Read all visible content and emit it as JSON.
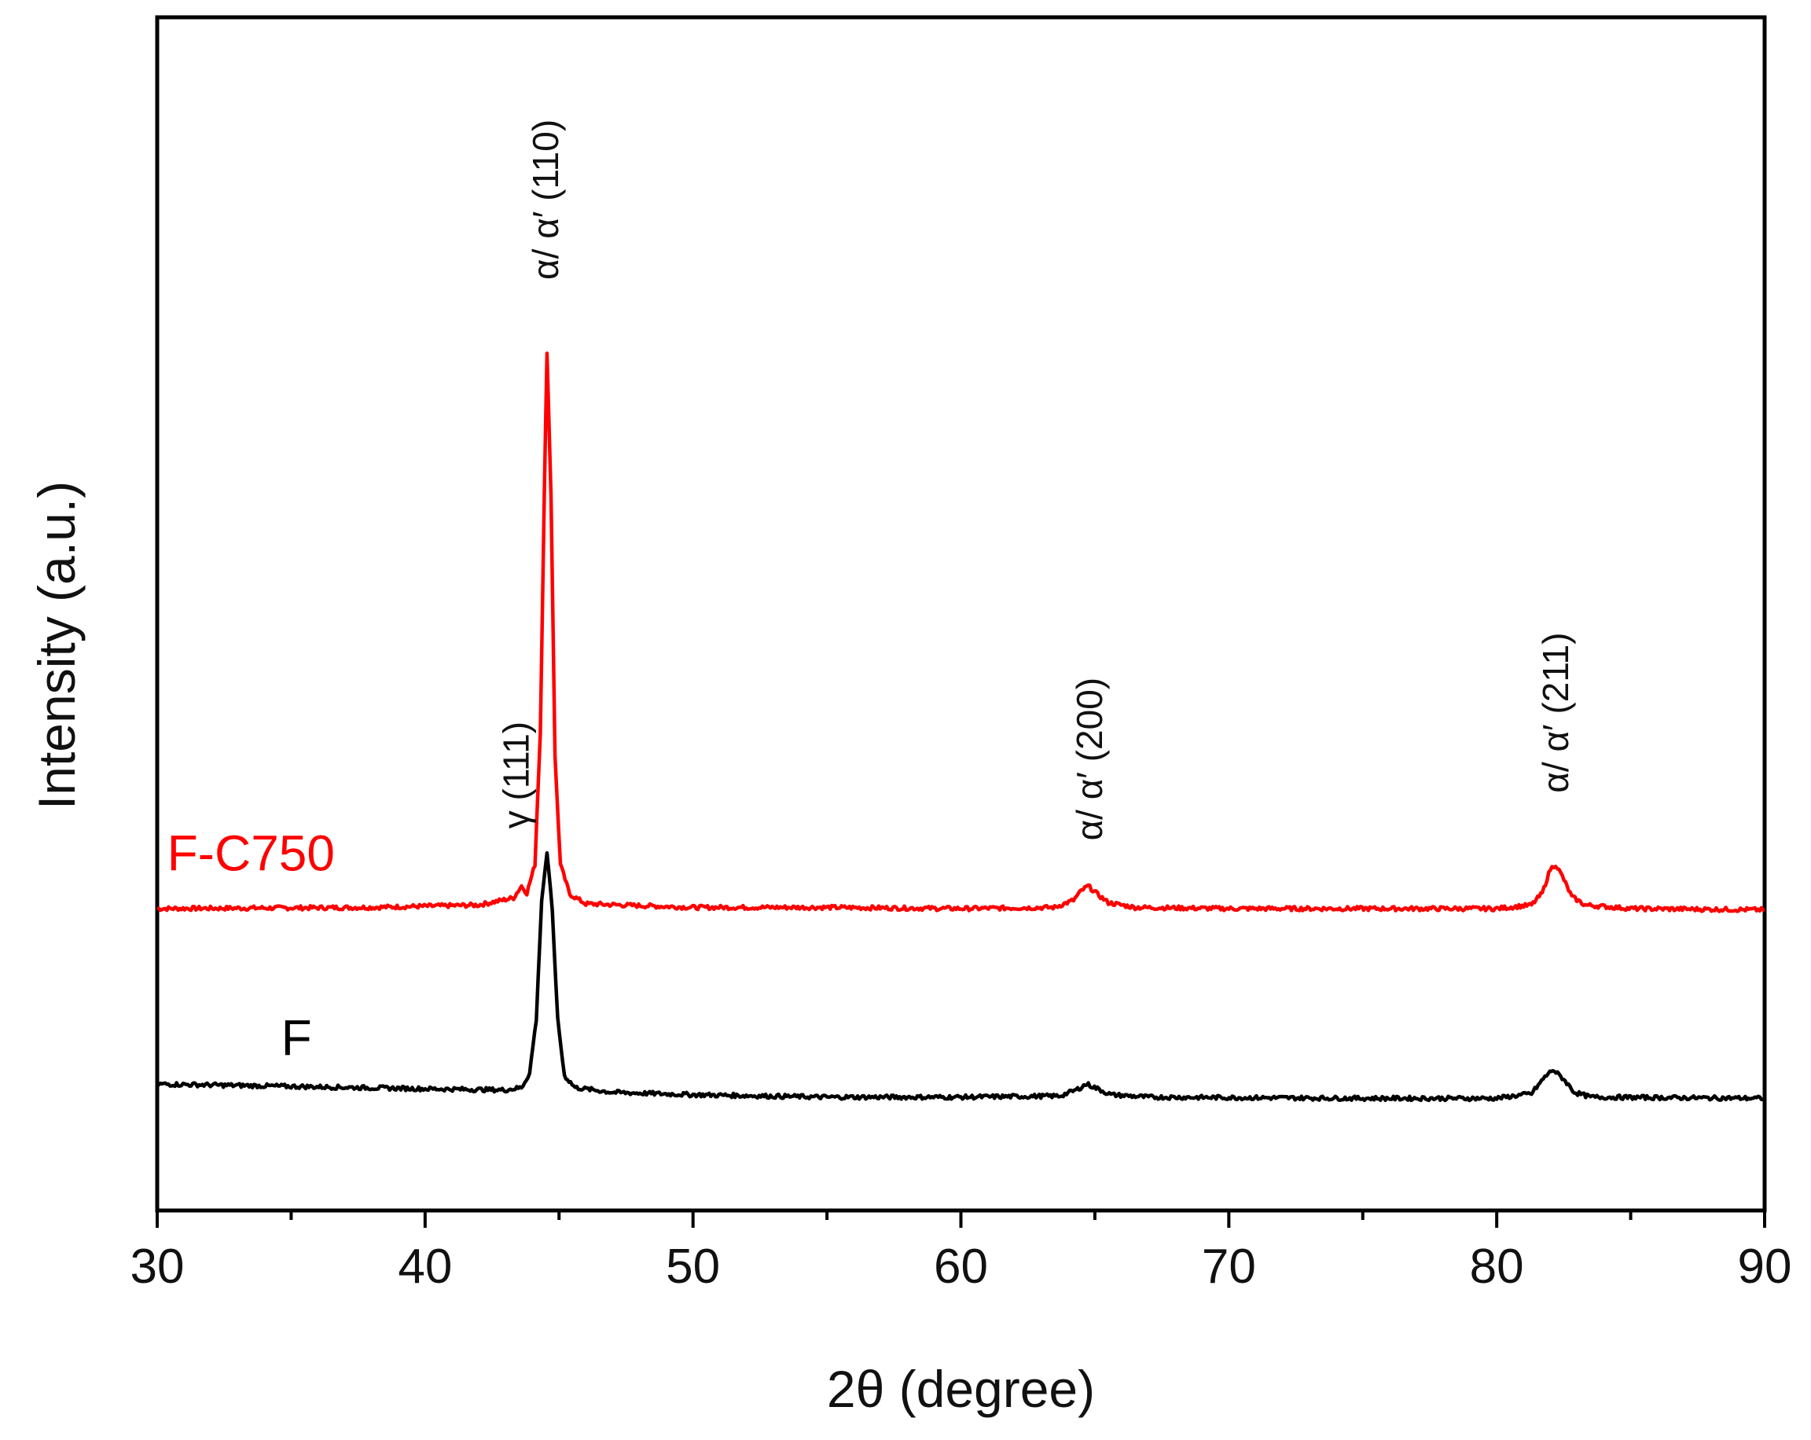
{
  "chart_data": {
    "type": "line",
    "xlabel": "2θ (degree)",
    "ylabel": "Intensity (a.u.)",
    "xlim": [
      30,
      90
    ],
    "ylim": [
      0,
      1
    ],
    "x_ticks": [
      30,
      40,
      50,
      60,
      70,
      80,
      90
    ],
    "y_ticks": [],
    "grid": false,
    "series": [
      {
        "name": "F-C750",
        "color": "#ff0000",
        "points": [
          [
            30,
            0.253
          ],
          [
            38,
            0.254
          ],
          [
            42,
            0.256
          ],
          [
            43.3,
            0.262
          ],
          [
            43.6,
            0.272
          ],
          [
            43.8,
            0.266
          ],
          [
            44.1,
            0.29
          ],
          [
            44.3,
            0.4
          ],
          [
            44.45,
            0.6
          ],
          [
            44.55,
            0.72
          ],
          [
            44.7,
            0.6
          ],
          [
            44.85,
            0.38
          ],
          [
            45.05,
            0.29
          ],
          [
            45.4,
            0.265
          ],
          [
            46,
            0.257
          ],
          [
            50,
            0.254
          ],
          [
            55,
            0.254
          ],
          [
            60,
            0.253
          ],
          [
            63.5,
            0.254
          ],
          [
            64.2,
            0.26
          ],
          [
            64.5,
            0.268
          ],
          [
            64.75,
            0.272
          ],
          [
            65.1,
            0.265
          ],
          [
            65.5,
            0.258
          ],
          [
            66.5,
            0.254
          ],
          [
            70,
            0.253
          ],
          [
            80,
            0.253
          ],
          [
            81.3,
            0.256
          ],
          [
            81.7,
            0.266
          ],
          [
            82.0,
            0.286
          ],
          [
            82.2,
            0.29
          ],
          [
            82.45,
            0.28
          ],
          [
            82.8,
            0.263
          ],
          [
            83.3,
            0.256
          ],
          [
            85,
            0.253
          ],
          [
            90,
            0.252
          ]
        ]
      },
      {
        "name": "F",
        "color": "#000000",
        "points": [
          [
            30,
            0.106
          ],
          [
            35,
            0.104
          ],
          [
            40,
            0.102
          ],
          [
            43,
            0.101
          ],
          [
            43.6,
            0.103
          ],
          [
            43.9,
            0.115
          ],
          [
            44.15,
            0.16
          ],
          [
            44.35,
            0.26
          ],
          [
            44.55,
            0.3
          ],
          [
            44.75,
            0.25
          ],
          [
            44.95,
            0.16
          ],
          [
            45.2,
            0.113
          ],
          [
            45.6,
            0.103
          ],
          [
            47,
            0.099
          ],
          [
            50,
            0.097
          ],
          [
            55,
            0.095
          ],
          [
            60,
            0.095
          ],
          [
            63.7,
            0.096
          ],
          [
            64.3,
            0.101
          ],
          [
            64.7,
            0.106
          ],
          [
            65.1,
            0.102
          ],
          [
            65.6,
            0.097
          ],
          [
            67,
            0.095
          ],
          [
            75,
            0.094
          ],
          [
            80,
            0.094
          ],
          [
            81.3,
            0.098
          ],
          [
            81.8,
            0.112
          ],
          [
            82.1,
            0.118
          ],
          [
            82.5,
            0.11
          ],
          [
            82.9,
            0.099
          ],
          [
            83.5,
            0.095
          ],
          [
            90,
            0.094
          ]
        ]
      }
    ],
    "annotations": [
      {
        "text": "γ (111)",
        "x": 43.4,
        "y": 0.32
      },
      {
        "text": "α/ α′  (110)",
        "x": 44.5,
        "y": 0.78
      },
      {
        "text": "α/ α′  (200)",
        "x": 64.8,
        "y": 0.31
      },
      {
        "text": "α/ α′  (211)",
        "x": 82.2,
        "y": 0.35
      }
    ]
  }
}
